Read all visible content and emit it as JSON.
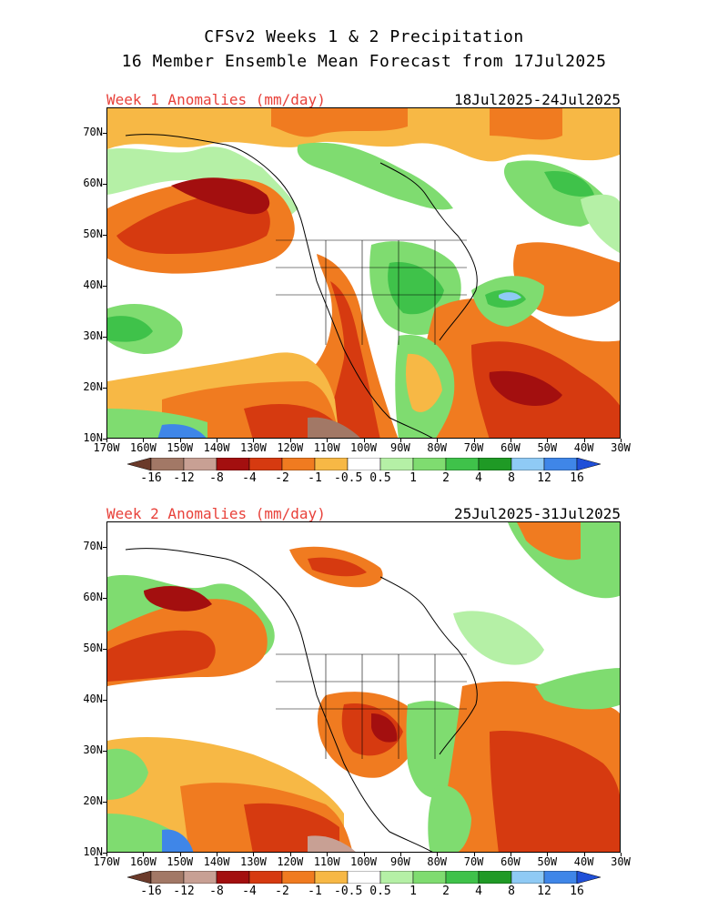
{
  "title_line1": "CFSv2 Weeks 1 & 2 Precipitation",
  "title_line2": "16 Member Ensemble Mean Forecast from 17Jul2025",
  "panels": [
    {
      "label": "Week 1 Anomalies (mm/day)",
      "dates": "18Jul2025-24Jul2025"
    },
    {
      "label": "Week 2 Anomalies (mm/day)",
      "dates": "25Jul2025-31Jul2025"
    }
  ],
  "lat_labels": [
    "70N",
    "60N",
    "50N",
    "40N",
    "30N",
    "20N",
    "10N"
  ],
  "lon_labels": [
    "170W",
    "160W",
    "150W",
    "140W",
    "130W",
    "120W",
    "110W",
    "100W",
    "90W",
    "80W",
    "70W",
    "60W",
    "50W",
    "40W",
    "30W"
  ],
  "colorbar": {
    "labels": [
      "-16",
      "-12",
      "-8",
      "-4",
      "-2",
      "-1",
      "-0.5",
      "0.5",
      "1",
      "2",
      "4",
      "8",
      "12",
      "16"
    ],
    "colors": [
      "#6b3a2a",
      "#a27866",
      "#c8a094",
      "#a30f0f",
      "#d63a10",
      "#f07b20",
      "#f7b845",
      "#ffffff",
      "#b5f0a6",
      "#7fdc70",
      "#3fc24a",
      "#1f9a25",
      "#8fcaf5",
      "#3f86e8",
      "#1f4fd8"
    ]
  }
}
